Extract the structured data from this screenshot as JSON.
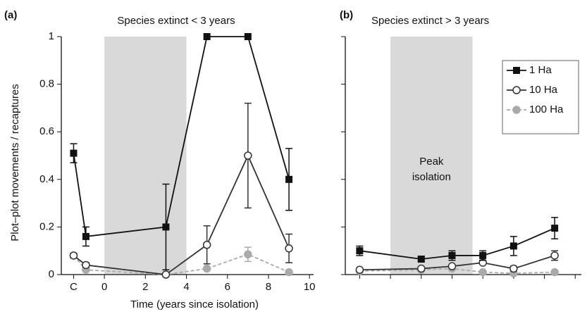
{
  "chart_data": [
    {
      "type": "line",
      "panel_label": "(a)",
      "title": "Species extinct < 3 years",
      "xlabel": "Time (years since isolation)",
      "ylabel": "Plot–plot movements / recaptures",
      "xlim": [
        -2.1,
        10.2
      ],
      "xticks": [
        {
          "value": -1.5,
          "label": "C"
        },
        0,
        2,
        4,
        6,
        8,
        10
      ],
      "ylim": [
        0,
        1
      ],
      "yticks": [
        0,
        0.2,
        0.4,
        0.6,
        0.8,
        1
      ],
      "tick_labels": true,
      "shade": [
        0,
        4
      ],
      "x": [
        -1.5,
        -0.9,
        3,
        5,
        7,
        9
      ],
      "series": [
        {
          "name": "1 Ha",
          "color": "#111111",
          "marker": "square",
          "dash": false,
          "values": [
            0.51,
            0.16,
            0.2,
            1,
            1,
            0.4
          ],
          "errors": [
            0.04,
            0.04,
            0.18,
            0,
            0,
            0.13
          ]
        },
        {
          "name": "10 Ha",
          "color": "#333333",
          "marker": "circle-open",
          "dash": false,
          "values": [
            0.08,
            0.04,
            0,
            0.125,
            0.5,
            0.11
          ],
          "errors": [
            0.01,
            0.01,
            0,
            0.08,
            0.22,
            0.06
          ]
        },
        {
          "name": "100 Ha",
          "color": "#aaaaaa",
          "marker": "circle",
          "dash": true,
          "values": [
            0.08,
            0.02,
            0,
            0.025,
            0.085,
            0.01
          ],
          "errors": [
            0,
            0,
            0,
            0,
            0.03,
            0
          ]
        }
      ]
    },
    {
      "type": "line",
      "panel_label": "(b)",
      "title": "Species extinct > 3 years",
      "xlim": [
        -2.2,
        9.3
      ],
      "xticks": [
        -1.5,
        0,
        1.5,
        3,
        4.5,
        6,
        7.5,
        9
      ],
      "ylim": [
        0,
        1
      ],
      "yticks": [
        0,
        0.2,
        0.4,
        0.6,
        0.8,
        1
      ],
      "tick_labels": false,
      "shade": [
        0,
        4
      ],
      "annotation": [
        "Peak",
        "isolation"
      ],
      "legend": "upper right",
      "x": [
        -1.5,
        1.5,
        3,
        4.5,
        6,
        8
      ],
      "series": [
        {
          "name": "1 Ha",
          "color": "#111111",
          "marker": "square",
          "dash": false,
          "values": [
            0.1,
            0.065,
            0.08,
            0.08,
            0.12,
            0.195
          ],
          "errors": [
            0.02,
            0.01,
            0.02,
            0.02,
            0.04,
            0.045
          ]
        },
        {
          "name": "10 Ha",
          "color": "#333333",
          "marker": "circle-open",
          "dash": false,
          "values": [
            0.02,
            0.025,
            0.035,
            0.05,
            0.025,
            0.08
          ],
          "errors": [
            0,
            0,
            0,
            0,
            0.01,
            0.02
          ]
        },
        {
          "name": "100 Ha",
          "color": "#aaaaaa",
          "marker": "circle",
          "dash": true,
          "values": [
            0.015,
            0.02,
            0.025,
            0.01,
            0.005,
            0.01
          ],
          "errors": [
            0,
            0,
            0,
            0,
            0,
            0
          ]
        }
      ]
    }
  ]
}
